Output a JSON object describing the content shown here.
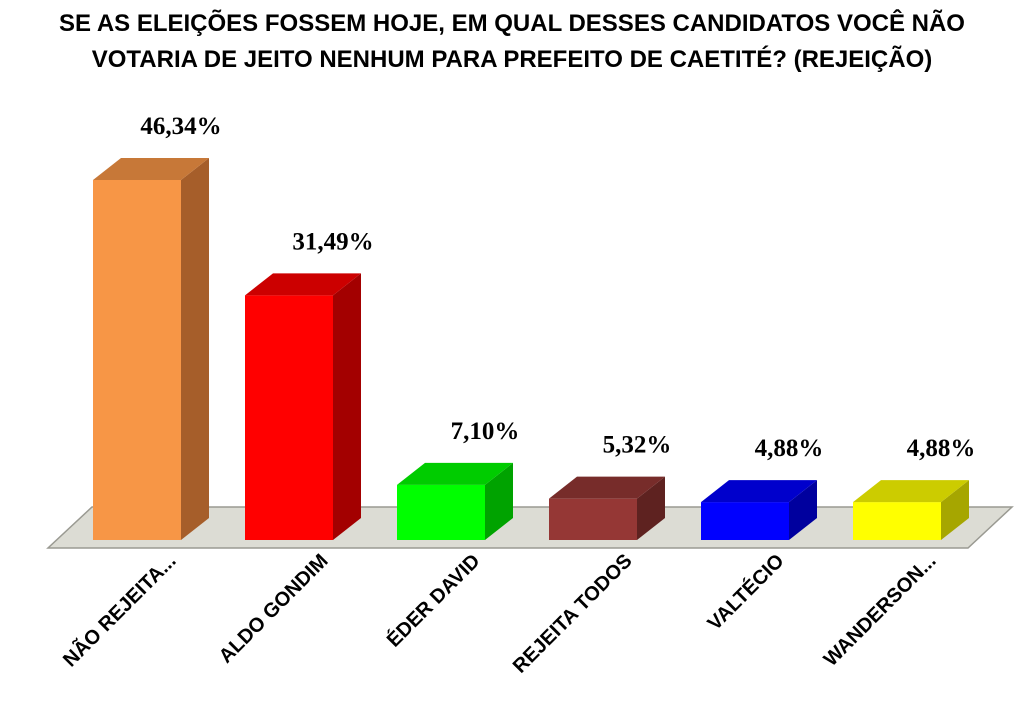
{
  "chart_data": {
    "type": "bar",
    "title_lines": [
      "SE AS ELEIÇÕES FOSSEM HOJE, EM QUAL DESSES CANDIDATOS VOCÊ NÃO",
      "VOTARIA DE JEITO NENHUM PARA PREFEITO DE CAETITÉ? (REJEIÇÃO)"
    ],
    "categories": [
      "NÃO REJEITA...",
      "ALDO GONDIM",
      "ÉDER DAVID",
      "REJEITA TODOS",
      "VALTÉCIO",
      "WANDERSON..."
    ],
    "values": [
      46.34,
      31.49,
      7.1,
      5.32,
      4.88,
      4.88
    ],
    "value_labels": [
      "46,34%",
      "31,49%",
      "7,10%",
      "5,32%",
      "4,88%",
      "4,88%"
    ],
    "colors": [
      "#F79646",
      "#FF0000",
      "#00FF00",
      "#953735",
      "#0000FF",
      "#FFFF00"
    ],
    "side_colors": [
      "#A65E2A",
      "#A30000",
      "#00A300",
      "#5E2220",
      "#00009E",
      "#A6A600"
    ],
    "top_colors": [
      "#C77838",
      "#CC0000",
      "#00CC00",
      "#772C2A",
      "#0000CC",
      "#CCCC00"
    ],
    "ylim": [
      0,
      50
    ],
    "grid": false,
    "legend": "none"
  }
}
